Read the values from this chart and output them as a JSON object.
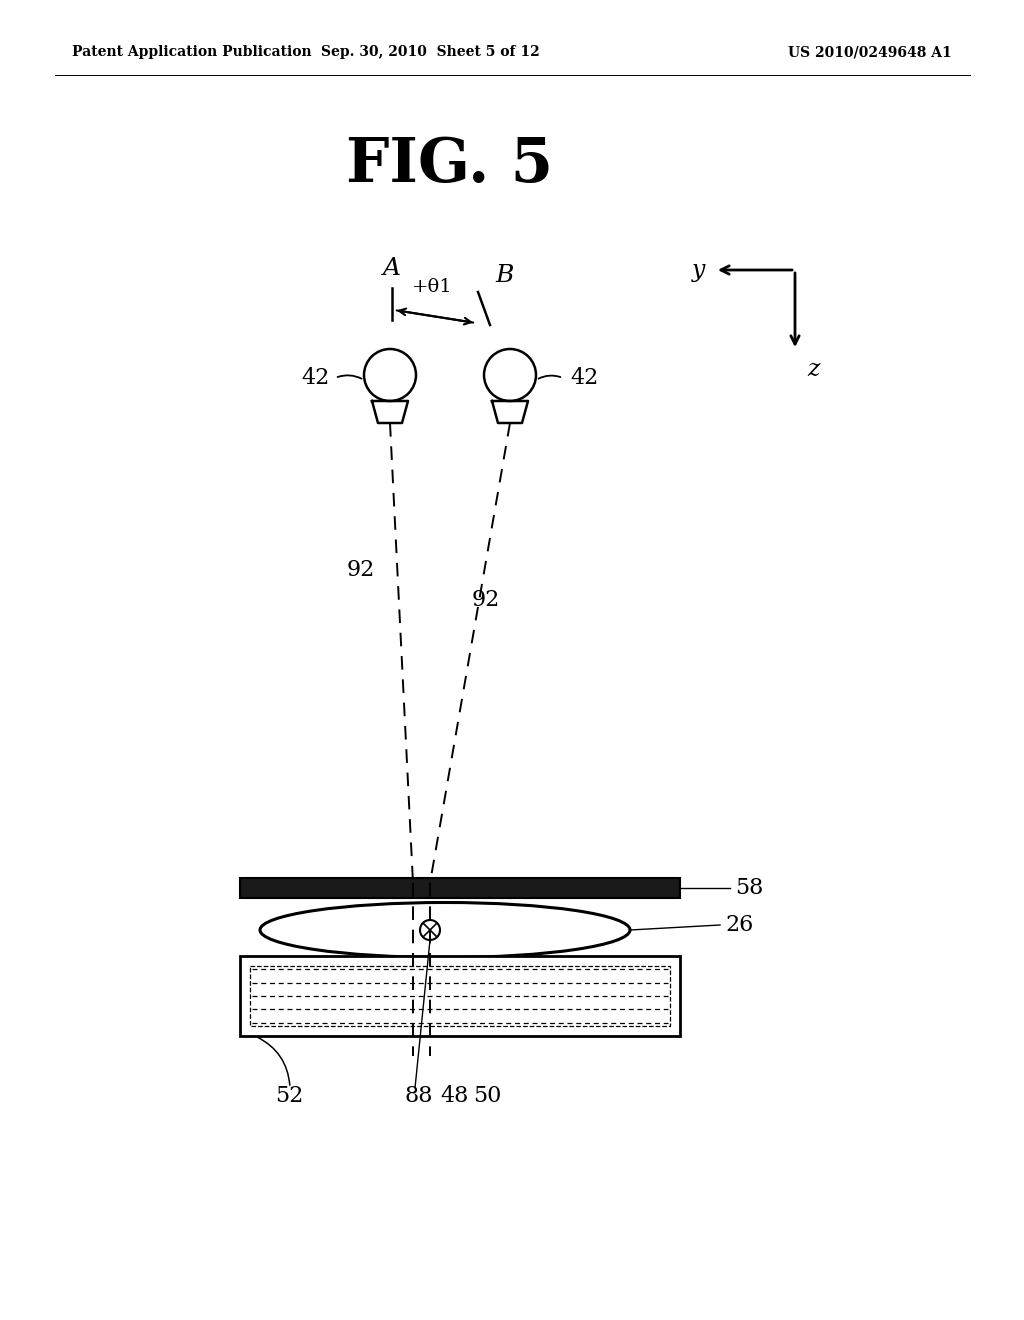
{
  "bg_color": "#ffffff",
  "header_left": "Patent Application Publication",
  "header_center": "Sep. 30, 2010  Sheet 5 of 12",
  "header_right": "US 2010/0249648 A1",
  "fig_title": "FIG. 5",
  "label_A": "A",
  "label_B": "B",
  "label_theta": "+θ1",
  "label_y": "y",
  "label_z": "z",
  "label_42_left": "42",
  "label_42_right": "42",
  "label_92_left": "92",
  "label_92_right": "92",
  "label_58": "58",
  "label_26": "26",
  "label_52": "52",
  "label_88": "88",
  "label_48": "48",
  "label_50": "50"
}
